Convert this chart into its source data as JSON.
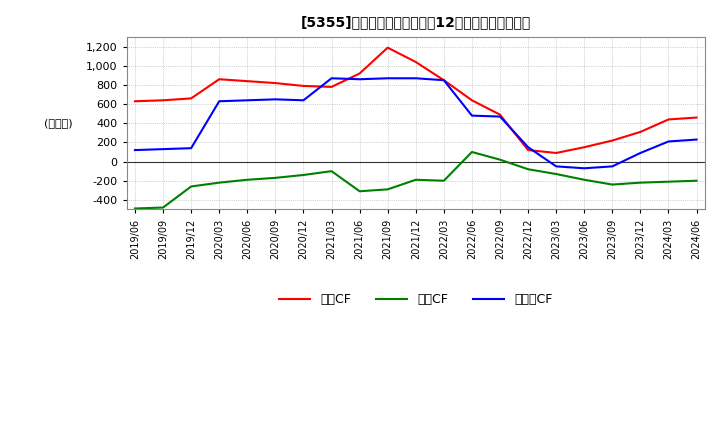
{
  "title_display": "[5355]　キャッシュフローの12か月移動合計の推移",
  "ylabel": "(百万円)",
  "ylim": [
    -500,
    1300
  ],
  "yticks": [
    -400,
    -200,
    0,
    200,
    400,
    600,
    800,
    1000,
    1200
  ],
  "dates": [
    "2019/06",
    "2019/09",
    "2019/12",
    "2020/03",
    "2020/06",
    "2020/09",
    "2020/12",
    "2021/03",
    "2021/06",
    "2021/09",
    "2021/12",
    "2022/03",
    "2022/06",
    "2022/09",
    "2022/12",
    "2023/03",
    "2023/06",
    "2023/09",
    "2023/12",
    "2024/03",
    "2024/06"
  ],
  "operating_cf": [
    630,
    640,
    660,
    860,
    840,
    820,
    790,
    780,
    920,
    1190,
    1040,
    850,
    640,
    490,
    120,
    90,
    150,
    220,
    310,
    440,
    460
  ],
  "investing_cf": [
    -490,
    -480,
    -260,
    -220,
    -190,
    -170,
    -140,
    -100,
    -310,
    -290,
    -190,
    -200,
    100,
    20,
    -80,
    -130,
    -190,
    -240,
    -220,
    -210,
    -200
  ],
  "free_cf": [
    120,
    130,
    140,
    630,
    640,
    650,
    640,
    870,
    860,
    870,
    870,
    850,
    480,
    470,
    150,
    -50,
    -70,
    -50,
    90,
    210,
    230
  ],
  "color_operating": "#ff0000",
  "color_investing": "#008000",
  "color_free": "#0000ff",
  "bg_color": "#ffffff",
  "plot_bg_color": "#ffffff",
  "grid_color": "#aaaaaa",
  "legend_labels": [
    "営業CF",
    "投資CF",
    "フリーCF"
  ]
}
